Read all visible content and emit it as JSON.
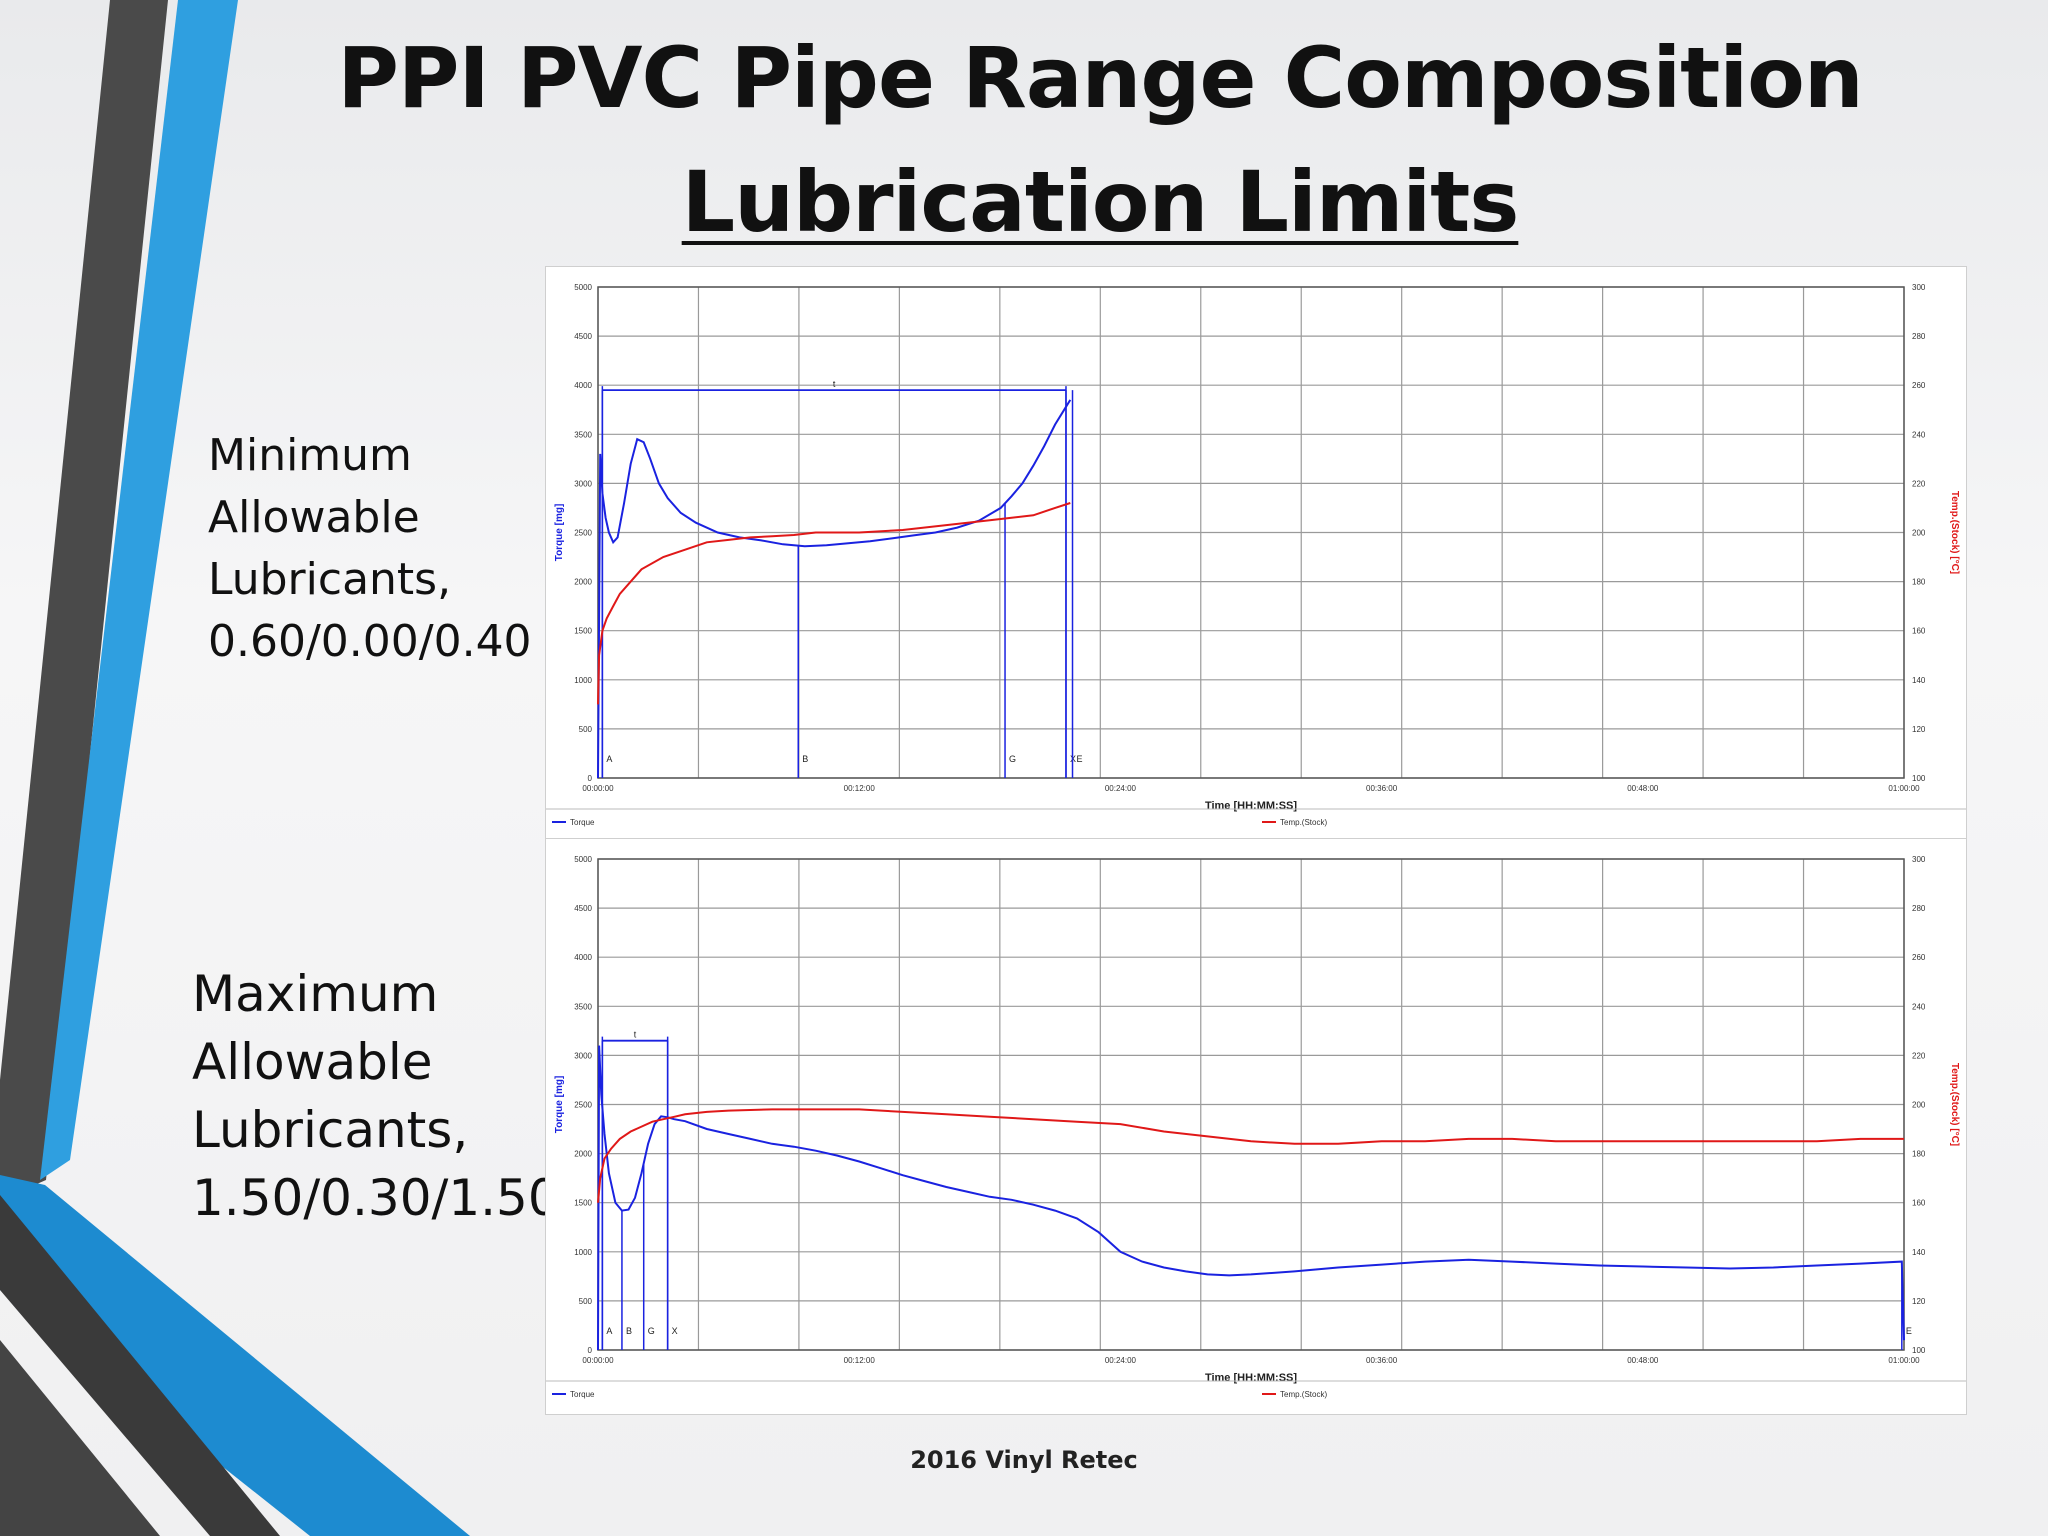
{
  "slide": {
    "title_line1": "PPI PVC Pipe Range Composition",
    "title_line2": "Lubrication Limits",
    "label_min": "Minimum\nAllowable\nLubricants,\n0.60/0.00/0.40",
    "label_max": "Maximum\nAllowable\nLubricants,\n1.50/0.30/1.50",
    "footer": "2016 Vinyl Retec",
    "colors": {
      "torque": "#1a22e0",
      "temp": "#e01818",
      "accent_blue": "#2f9fe0",
      "accent_dark": "#4a4a4a"
    }
  },
  "chart_data": [
    {
      "type": "line",
      "title": "",
      "xlabel": "Time [HH:MM:SS]",
      "ylabel": "Torque [mg]",
      "y2label": "Temp.(Stock) [°C]",
      "xlim": [
        0,
        60
      ],
      "ylim": [
        0,
        5000
      ],
      "y2lim": [
        100,
        300
      ],
      "x_ticks": [
        0,
        12,
        24,
        36,
        48,
        60
      ],
      "x_tick_labels": [
        "00:00:00",
        "00:12:00",
        "00:24:00",
        "00:36:00",
        "00:48:00",
        "01:00:00"
      ],
      "y_ticks": [
        0,
        500,
        1000,
        1500,
        2000,
        2500,
        3000,
        3500,
        4000,
        4500,
        5000
      ],
      "y_tick_labels": [
        "0",
        "500",
        "1000",
        "1500",
        "2000",
        "2500",
        "3000",
        "3500",
        "4000",
        "4500",
        "5000"
      ],
      "y2_ticks": [
        100,
        120,
        140,
        160,
        180,
        200,
        220,
        240,
        260,
        280,
        300
      ],
      "y2_tick_labels": [
        "100",
        "120",
        "140",
        "160",
        "180",
        "200",
        "220",
        "240",
        "260",
        "280",
        "300"
      ],
      "grid": true,
      "legend_position": "bottom",
      "series": [
        {
          "name": "Torque",
          "axis": "left",
          "color": "#1a22e0",
          "x": [
            0,
            0.1,
            0.2,
            0.35,
            0.5,
            0.7,
            0.9,
            1.2,
            1.5,
            1.8,
            2.1,
            2.4,
            2.8,
            3.2,
            3.8,
            4.5,
            5.5,
            6.5,
            7.5,
            8.5,
            9.5,
            10.5,
            11.5,
            12.5,
            13.5,
            14.5,
            15.5,
            16.5,
            17.5,
            18.5,
            19,
            19.5,
            20,
            20.5,
            21,
            21.5,
            21.7
          ],
          "y": [
            0,
            3300,
            2900,
            2650,
            2500,
            2400,
            2450,
            2800,
            3200,
            3450,
            3420,
            3250,
            3000,
            2850,
            2700,
            2600,
            2500,
            2450,
            2420,
            2380,
            2360,
            2370,
            2390,
            2410,
            2440,
            2470,
            2500,
            2550,
            2620,
            2750,
            2870,
            3000,
            3180,
            3380,
            3600,
            3780,
            3850
          ]
        },
        {
          "name": "Temp.(Stock)",
          "axis": "right",
          "color": "#e01818",
          "x": [
            0,
            0.05,
            0.2,
            0.4,
            0.7,
            1,
            1.5,
            2,
            3,
            4,
            5,
            6,
            7,
            8,
            9,
            10,
            12,
            14,
            16,
            18,
            19,
            20,
            21,
            21.7
          ],
          "y": [
            130,
            150,
            160,
            165,
            170,
            175,
            180,
            185,
            190,
            193,
            196,
            197,
            198,
            198.5,
            199,
            200,
            200,
            201,
            203,
            205,
            206,
            207,
            210,
            212
          ]
        }
      ],
      "markers": [
        {
          "label": "A",
          "x": 0.2
        },
        {
          "label": "B",
          "x": 9.2
        },
        {
          "label": "G",
          "x": 18.7
        },
        {
          "label": "X",
          "x": 21.5
        },
        {
          "label": "E",
          "x": 21.8
        }
      ],
      "bracket": {
        "label": "t",
        "x_start": 0.2,
        "x_end": 21.5,
        "y": 3950
      }
    },
    {
      "type": "line",
      "title": "",
      "xlabel": "Time [HH:MM:SS]",
      "ylabel": "Torque [mg]",
      "y2label": "Temp.(Stock) [°C]",
      "xlim": [
        0,
        60
      ],
      "ylim": [
        0,
        5000
      ],
      "y2lim": [
        100,
        300
      ],
      "x_ticks": [
        0,
        12,
        24,
        36,
        48,
        60
      ],
      "x_tick_labels": [
        "00:00:00",
        "00:12:00",
        "00:24:00",
        "00:36:00",
        "00:48:00",
        "01:00:00"
      ],
      "y_ticks": [
        0,
        500,
        1000,
        1500,
        2000,
        2500,
        3000,
        3500,
        4000,
        4500,
        5000
      ],
      "y_tick_labels": [
        "0",
        "500",
        "1000",
        "1500",
        "2000",
        "2500",
        "3000",
        "3500",
        "4000",
        "4500",
        "5000"
      ],
      "y2_ticks": [
        100,
        120,
        140,
        160,
        180,
        200,
        220,
        240,
        260,
        280,
        300
      ],
      "y2_tick_labels": [
        "100",
        "120",
        "140",
        "160",
        "180",
        "200",
        "220",
        "240",
        "260",
        "280",
        "300"
      ],
      "grid": true,
      "legend_position": "bottom",
      "series": [
        {
          "name": "Torque",
          "axis": "left",
          "color": "#1a22e0",
          "x": [
            0,
            0.05,
            0.15,
            0.3,
            0.5,
            0.8,
            1.1,
            1.4,
            1.7,
            2,
            2.3,
            2.6,
            2.9,
            3.2,
            3.5,
            4,
            5,
            6,
            7,
            8,
            9,
            10,
            11,
            12,
            13,
            14,
            15,
            16,
            17,
            18,
            19,
            20,
            21,
            22,
            23,
            24,
            25,
            26,
            27,
            28,
            29,
            30,
            32,
            34,
            36,
            38,
            40,
            42,
            44,
            46,
            48,
            50,
            52,
            54,
            56,
            58,
            59.9,
            60
          ],
          "y": [
            0,
            3100,
            2600,
            2200,
            1800,
            1500,
            1420,
            1430,
            1550,
            1800,
            2100,
            2300,
            2380,
            2370,
            2350,
            2330,
            2250,
            2200,
            2150,
            2100,
            2070,
            2030,
            1980,
            1920,
            1850,
            1780,
            1720,
            1660,
            1610,
            1560,
            1530,
            1480,
            1420,
            1340,
            1200,
            1000,
            900,
            840,
            800,
            770,
            760,
            770,
            800,
            840,
            870,
            900,
            920,
            900,
            880,
            860,
            850,
            840,
            830,
            840,
            860,
            880,
            900,
            100
          ]
        },
        {
          "name": "Temp.(Stock)",
          "axis": "right",
          "color": "#e01818",
          "x": [
            0,
            0.1,
            0.3,
            0.6,
            1,
            1.5,
            2,
            2.5,
            3,
            3.5,
            4,
            5,
            6,
            8,
            10,
            12,
            14,
            16,
            18,
            20,
            22,
            24,
            26,
            28,
            30,
            32,
            34,
            36,
            38,
            40,
            42,
            44,
            46,
            48,
            50,
            52,
            54,
            56,
            58,
            60
          ],
          "y": [
            160,
            170,
            178,
            182,
            186,
            189,
            191,
            193,
            194,
            195,
            196,
            197,
            197.5,
            198,
            198,
            198,
            197,
            196,
            195,
            194,
            193,
            192,
            189,
            187,
            185,
            184,
            184,
            185,
            185,
            186,
            186,
            185,
            185,
            185,
            185,
            185,
            185,
            185,
            186,
            186
          ]
        }
      ],
      "markers": [
        {
          "label": "A",
          "x": 0.2
        },
        {
          "label": "B",
          "x": 1.1
        },
        {
          "label": "G",
          "x": 2.1
        },
        {
          "label": "X",
          "x": 3.2
        },
        {
          "label": "E",
          "x": 59.9
        }
      ],
      "bracket": {
        "label": "t",
        "x_start": 0.2,
        "x_end": 3.2,
        "y": 3150
      }
    }
  ]
}
